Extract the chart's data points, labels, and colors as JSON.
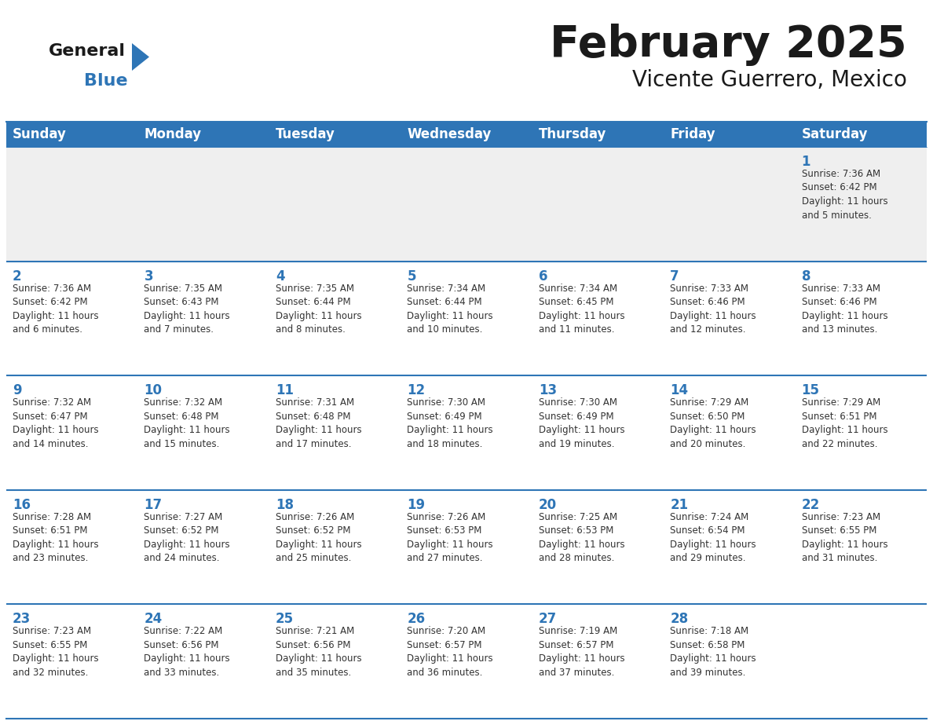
{
  "title": "February 2025",
  "subtitle": "Vicente Guerrero, Mexico",
  "header_bg": "#2E75B6",
  "header_text_color": "#FFFFFF",
  "cell_bg_week1": "#EFEFEF",
  "cell_bg_white": "#FFFFFF",
  "day_number_color": "#2E75B6",
  "cell_text_color": "#333333",
  "grid_line_color": "#2E75B6",
  "outer_border_color": "#2E75B6",
  "days_of_week": [
    "Sunday",
    "Monday",
    "Tuesday",
    "Wednesday",
    "Thursday",
    "Friday",
    "Saturday"
  ],
  "weeks": [
    [
      {
        "day": null,
        "info": null
      },
      {
        "day": null,
        "info": null
      },
      {
        "day": null,
        "info": null
      },
      {
        "day": null,
        "info": null
      },
      {
        "day": null,
        "info": null
      },
      {
        "day": null,
        "info": null
      },
      {
        "day": 1,
        "info": "Sunrise: 7:36 AM\nSunset: 6:42 PM\nDaylight: 11 hours\nand 5 minutes."
      }
    ],
    [
      {
        "day": 2,
        "info": "Sunrise: 7:36 AM\nSunset: 6:42 PM\nDaylight: 11 hours\nand 6 minutes."
      },
      {
        "day": 3,
        "info": "Sunrise: 7:35 AM\nSunset: 6:43 PM\nDaylight: 11 hours\nand 7 minutes."
      },
      {
        "day": 4,
        "info": "Sunrise: 7:35 AM\nSunset: 6:44 PM\nDaylight: 11 hours\nand 8 minutes."
      },
      {
        "day": 5,
        "info": "Sunrise: 7:34 AM\nSunset: 6:44 PM\nDaylight: 11 hours\nand 10 minutes."
      },
      {
        "day": 6,
        "info": "Sunrise: 7:34 AM\nSunset: 6:45 PM\nDaylight: 11 hours\nand 11 minutes."
      },
      {
        "day": 7,
        "info": "Sunrise: 7:33 AM\nSunset: 6:46 PM\nDaylight: 11 hours\nand 12 minutes."
      },
      {
        "day": 8,
        "info": "Sunrise: 7:33 AM\nSunset: 6:46 PM\nDaylight: 11 hours\nand 13 minutes."
      }
    ],
    [
      {
        "day": 9,
        "info": "Sunrise: 7:32 AM\nSunset: 6:47 PM\nDaylight: 11 hours\nand 14 minutes."
      },
      {
        "day": 10,
        "info": "Sunrise: 7:32 AM\nSunset: 6:48 PM\nDaylight: 11 hours\nand 15 minutes."
      },
      {
        "day": 11,
        "info": "Sunrise: 7:31 AM\nSunset: 6:48 PM\nDaylight: 11 hours\nand 17 minutes."
      },
      {
        "day": 12,
        "info": "Sunrise: 7:30 AM\nSunset: 6:49 PM\nDaylight: 11 hours\nand 18 minutes."
      },
      {
        "day": 13,
        "info": "Sunrise: 7:30 AM\nSunset: 6:49 PM\nDaylight: 11 hours\nand 19 minutes."
      },
      {
        "day": 14,
        "info": "Sunrise: 7:29 AM\nSunset: 6:50 PM\nDaylight: 11 hours\nand 20 minutes."
      },
      {
        "day": 15,
        "info": "Sunrise: 7:29 AM\nSunset: 6:51 PM\nDaylight: 11 hours\nand 22 minutes."
      }
    ],
    [
      {
        "day": 16,
        "info": "Sunrise: 7:28 AM\nSunset: 6:51 PM\nDaylight: 11 hours\nand 23 minutes."
      },
      {
        "day": 17,
        "info": "Sunrise: 7:27 AM\nSunset: 6:52 PM\nDaylight: 11 hours\nand 24 minutes."
      },
      {
        "day": 18,
        "info": "Sunrise: 7:26 AM\nSunset: 6:52 PM\nDaylight: 11 hours\nand 25 minutes."
      },
      {
        "day": 19,
        "info": "Sunrise: 7:26 AM\nSunset: 6:53 PM\nDaylight: 11 hours\nand 27 minutes."
      },
      {
        "day": 20,
        "info": "Sunrise: 7:25 AM\nSunset: 6:53 PM\nDaylight: 11 hours\nand 28 minutes."
      },
      {
        "day": 21,
        "info": "Sunrise: 7:24 AM\nSunset: 6:54 PM\nDaylight: 11 hours\nand 29 minutes."
      },
      {
        "day": 22,
        "info": "Sunrise: 7:23 AM\nSunset: 6:55 PM\nDaylight: 11 hours\nand 31 minutes."
      }
    ],
    [
      {
        "day": 23,
        "info": "Sunrise: 7:23 AM\nSunset: 6:55 PM\nDaylight: 11 hours\nand 32 minutes."
      },
      {
        "day": 24,
        "info": "Sunrise: 7:22 AM\nSunset: 6:56 PM\nDaylight: 11 hours\nand 33 minutes."
      },
      {
        "day": 25,
        "info": "Sunrise: 7:21 AM\nSunset: 6:56 PM\nDaylight: 11 hours\nand 35 minutes."
      },
      {
        "day": 26,
        "info": "Sunrise: 7:20 AM\nSunset: 6:57 PM\nDaylight: 11 hours\nand 36 minutes."
      },
      {
        "day": 27,
        "info": "Sunrise: 7:19 AM\nSunset: 6:57 PM\nDaylight: 11 hours\nand 37 minutes."
      },
      {
        "day": 28,
        "info": "Sunrise: 7:18 AM\nSunset: 6:58 PM\nDaylight: 11 hours\nand 39 minutes."
      },
      {
        "day": null,
        "info": null
      }
    ]
  ],
  "logo_general_color": "#1a1a1a",
  "logo_blue_color": "#2E75B6",
  "title_color": "#1a1a1a",
  "subtitle_color": "#1a1a1a"
}
